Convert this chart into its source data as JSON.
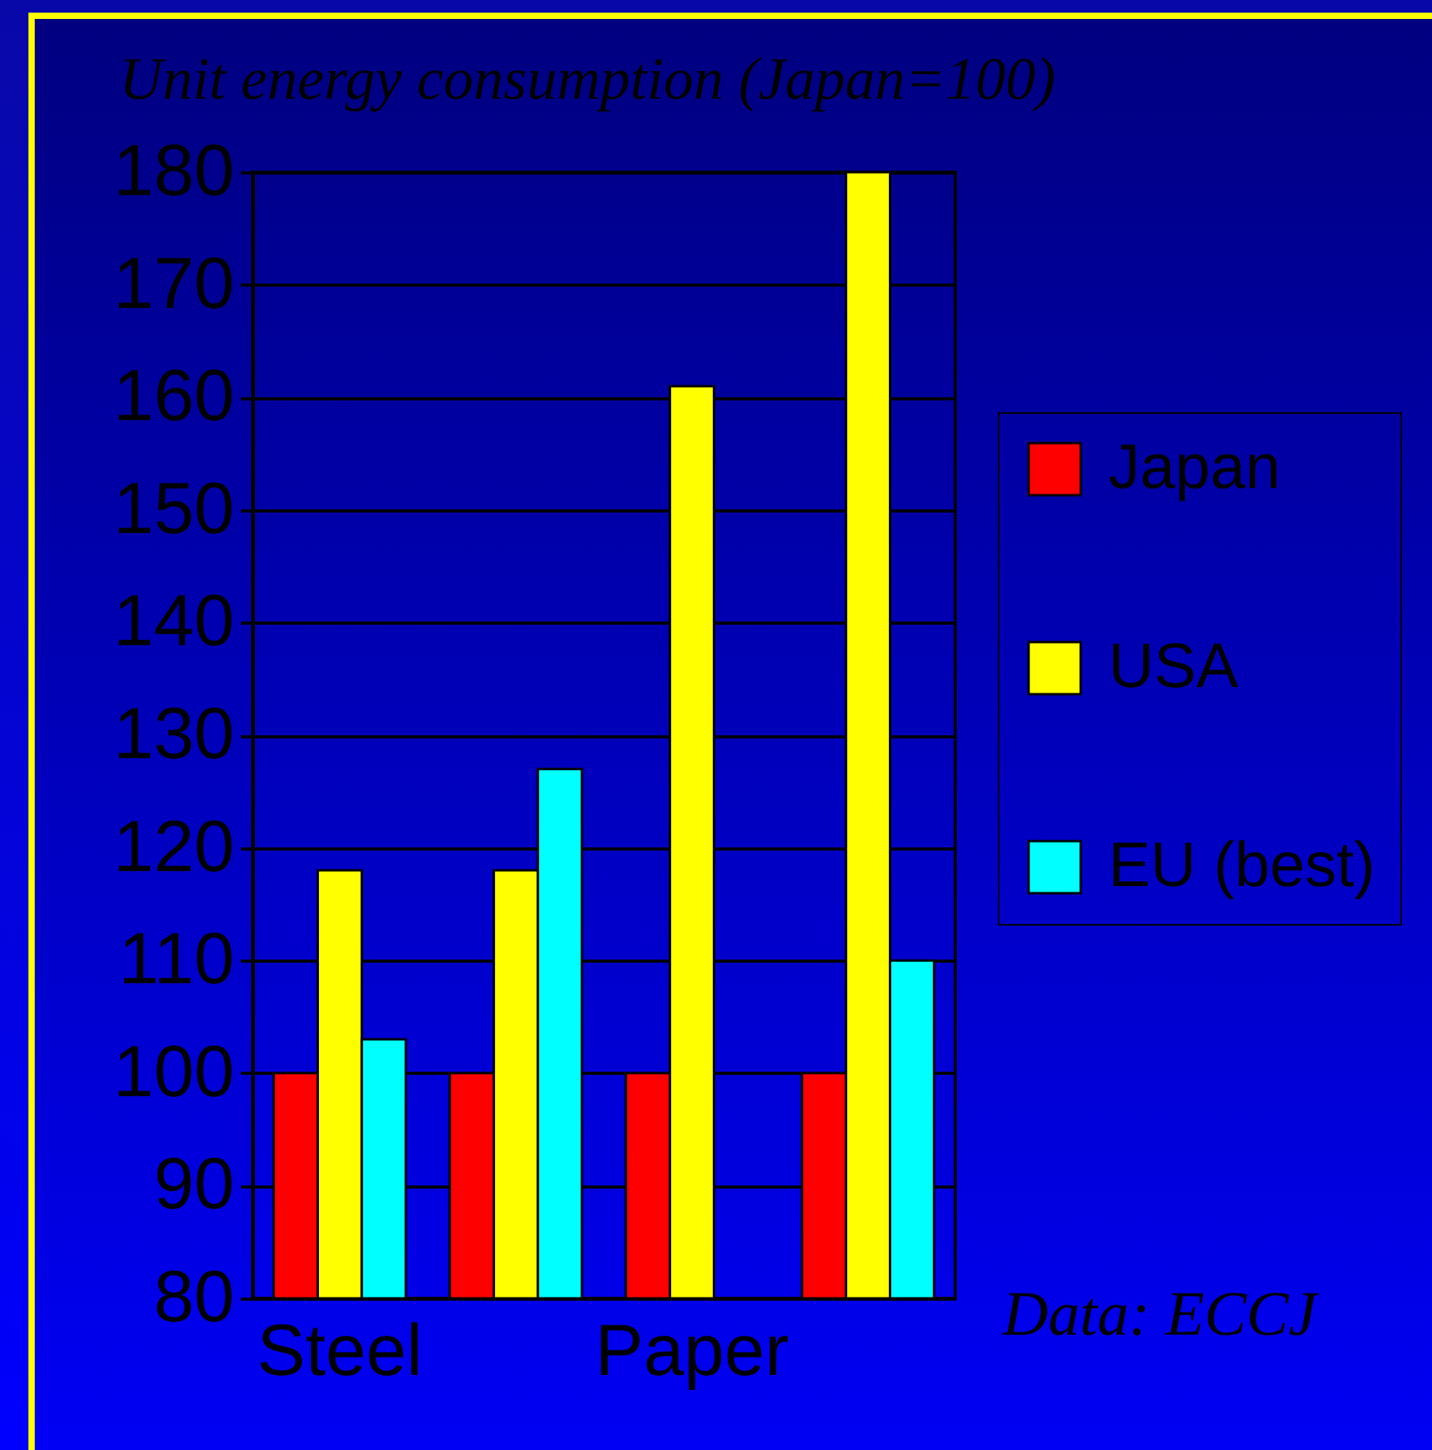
{
  "chart_data": {
    "type": "bar",
    "ylabel": "Unit energy consumption (Japan=100)",
    "categories": [
      "Steel",
      null,
      "Paper",
      null
    ],
    "series": [
      {
        "name": "Japan",
        "color": "#ff0000",
        "values": [
          100,
          100,
          100,
          100
        ]
      },
      {
        "name": "USA",
        "color": "#ffff00",
        "values": [
          118,
          118,
          161,
          180
        ]
      },
      {
        "name": "EU (best)",
        "color": "#00ffff",
        "values": [
          103,
          127,
          null,
          110
        ]
      }
    ],
    "ylim": [
      80,
      180
    ],
    "yticks": [
      80,
      90,
      100,
      110,
      120,
      130,
      140,
      150,
      160,
      170,
      180
    ],
    "grid": "y",
    "legend": "right",
    "annotations": [
      "Data: ECCJ"
    ]
  }
}
